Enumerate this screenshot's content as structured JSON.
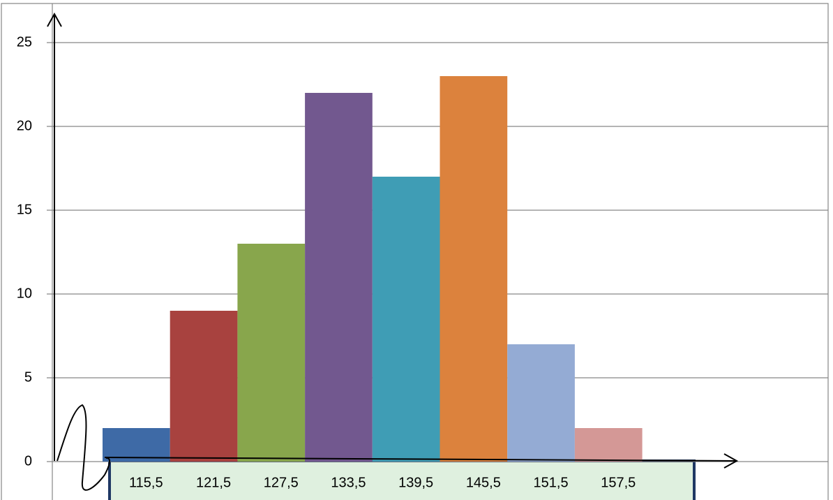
{
  "chart_data": {
    "type": "bar",
    "categories": [
      "115,5",
      "121,5",
      "127,5",
      "133,5",
      "139,5",
      "145,5",
      "151,5",
      "157,5"
    ],
    "values": [
      2,
      9,
      13,
      22,
      17,
      23,
      7,
      2
    ],
    "colors": [
      "#3e6aa6",
      "#a8423f",
      "#88a64c",
      "#72588f",
      "#3f9db5",
      "#dc823d",
      "#94abd4",
      "#d49896"
    ],
    "ylim": [
      0,
      25
    ],
    "yticks": [
      0,
      5,
      10,
      15,
      20,
      25
    ],
    "grid": true
  }
}
